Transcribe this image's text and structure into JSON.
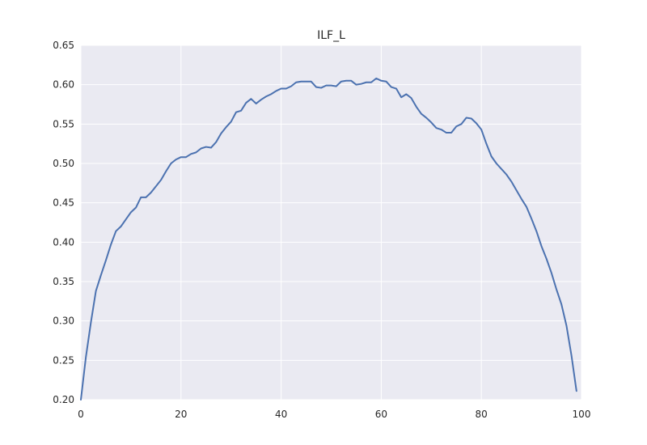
{
  "chart_data": {
    "type": "line",
    "title": "ILF_L",
    "xlabel": "",
    "ylabel": "",
    "xlim": [
      0,
      100
    ],
    "ylim": [
      0.2,
      0.65
    ],
    "grid": true,
    "x_ticks": [
      0,
      20,
      40,
      60,
      80,
      100
    ],
    "y_ticks": [
      0.2,
      0.25,
      0.3,
      0.35,
      0.4,
      0.45,
      0.5,
      0.55,
      0.6,
      0.65
    ],
    "x_tick_labels": [
      "0",
      "20",
      "40",
      "60",
      "80",
      "100"
    ],
    "y_tick_labels": [
      "0.20",
      "0.25",
      "0.30",
      "0.35",
      "0.40",
      "0.45",
      "0.50",
      "0.55",
      "0.60",
      "0.65"
    ],
    "colors": {
      "background": "#eaeaf2",
      "grid": "#ffffff",
      "line": "#4c72b0"
    },
    "series": [
      {
        "x": [
          0,
          1,
          2,
          3,
          4,
          5,
          6,
          7,
          8,
          9,
          10,
          11,
          12,
          13,
          14,
          15,
          16,
          17,
          18,
          19,
          20,
          21,
          22,
          23,
          24,
          25,
          26,
          27,
          28,
          29,
          30,
          31,
          32,
          33,
          34,
          35,
          36,
          37,
          38,
          39,
          40,
          41,
          42,
          43,
          44,
          45,
          46,
          47,
          48,
          49,
          50,
          51,
          52,
          53,
          54,
          55,
          56,
          57,
          58,
          59,
          60,
          61,
          62,
          63,
          64,
          65,
          66,
          67,
          68,
          69,
          70,
          71,
          72,
          73,
          74,
          75,
          76,
          77,
          78,
          79,
          80,
          81,
          82,
          83,
          84,
          85,
          86,
          87,
          88,
          89,
          90,
          91,
          92,
          93,
          94,
          95,
          96,
          97,
          98,
          99
        ],
        "values": [
          0.2,
          0.254,
          0.298,
          0.338,
          0.358,
          0.377,
          0.397,
          0.414,
          0.42,
          0.429,
          0.438,
          0.444,
          0.457,
          0.457,
          0.463,
          0.471,
          0.479,
          0.49,
          0.5,
          0.505,
          0.508,
          0.508,
          0.512,
          0.514,
          0.519,
          0.521,
          0.52,
          0.527,
          0.538,
          0.546,
          0.553,
          0.565,
          0.567,
          0.577,
          0.582,
          0.576,
          0.581,
          0.585,
          0.588,
          0.592,
          0.595,
          0.595,
          0.598,
          0.603,
          0.604,
          0.604,
          0.604,
          0.597,
          0.596,
          0.599,
          0.599,
          0.598,
          0.604,
          0.605,
          0.605,
          0.6,
          0.601,
          0.603,
          0.603,
          0.608,
          0.605,
          0.604,
          0.597,
          0.595,
          0.584,
          0.588,
          0.583,
          0.572,
          0.563,
          0.558,
          0.552,
          0.545,
          0.543,
          0.539,
          0.539,
          0.547,
          0.55,
          0.558,
          0.557,
          0.551,
          0.543,
          0.525,
          0.509,
          0.5,
          0.493,
          0.486,
          0.477,
          0.466,
          0.455,
          0.445,
          0.43,
          0.414,
          0.395,
          0.379,
          0.361,
          0.34,
          0.321,
          0.294,
          0.256,
          0.211
        ]
      }
    ]
  }
}
